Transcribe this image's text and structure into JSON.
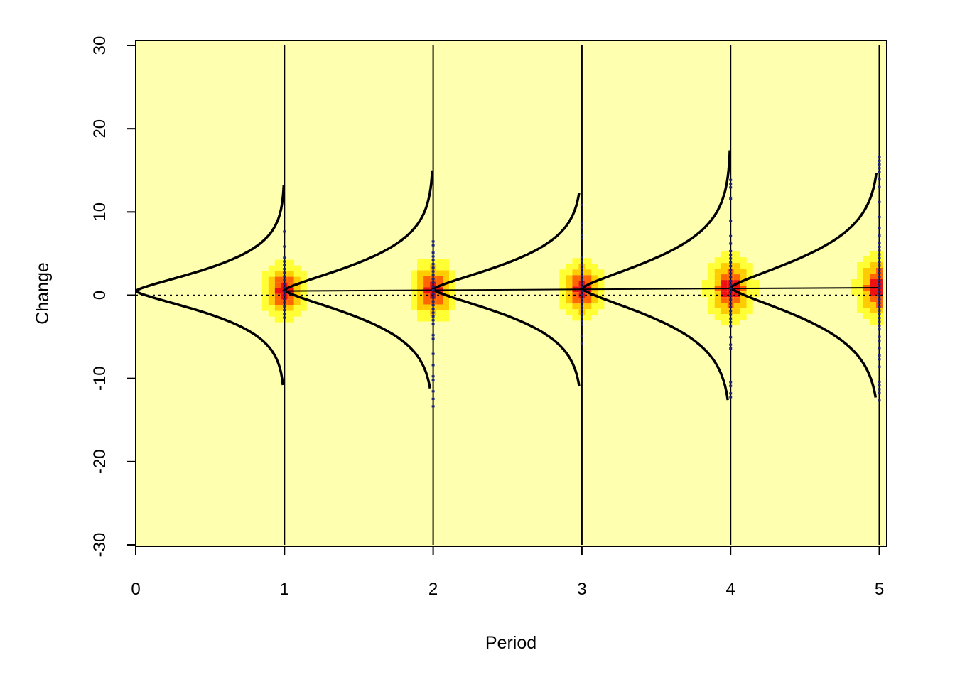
{
  "chart_data": {
    "type": "density-ridge",
    "title": "",
    "xlabel": "Period",
    "ylabel": "Change",
    "xlim": [
      0,
      5.05
    ],
    "ylim": [
      -30,
      30
    ],
    "xticks": [
      "0",
      "1",
      "2",
      "3",
      "4",
      "5"
    ],
    "yticks": [
      "-30",
      "-20",
      "-10",
      "0",
      "10",
      "20",
      "30"
    ],
    "colors": {
      "background": "#ffffb0",
      "heat_low": "#ffff33",
      "heat_mid": "#ffcc00",
      "heat_high": "#ff6600",
      "heat_max": "#ee1111",
      "points": "#1a237e",
      "curves": "#000000"
    },
    "periods": [
      {
        "x": 1,
        "center": 0.5,
        "spread": 2.2,
        "min": -10.8,
        "max": 13.2,
        "obs_min": -3.6,
        "obs_max": 8.5
      },
      {
        "x": 2,
        "center": 0.6,
        "spread": 2.6,
        "min": -11.2,
        "max": 15.1,
        "obs_min": -13.8,
        "obs_max": 8.2
      },
      {
        "x": 3,
        "center": 0.7,
        "spread": 2.5,
        "min": -10.9,
        "max": 12.4,
        "obs_min": -5.8,
        "obs_max": 12.2
      },
      {
        "x": 4,
        "center": 0.8,
        "spread": 2.9,
        "min": -12.6,
        "max": 17.4,
        "obs_min": -13.6,
        "obs_max": 14.5
      },
      {
        "x": 5,
        "center": 0.9,
        "spread": 3.0,
        "min": -12.3,
        "max": 14.8,
        "obs_min": -14.0,
        "obs_max": 17.6
      }
    ],
    "trend": [
      {
        "x": 1,
        "y": 0.5
      },
      {
        "x": 2,
        "y": 0.6
      },
      {
        "x": 3,
        "y": 0.7
      },
      {
        "x": 4,
        "y": 0.8
      },
      {
        "x": 5,
        "y": 0.9
      }
    ],
    "reference_line": {
      "y": 0,
      "style": "dotted"
    },
    "grid": false,
    "legend": "none"
  }
}
